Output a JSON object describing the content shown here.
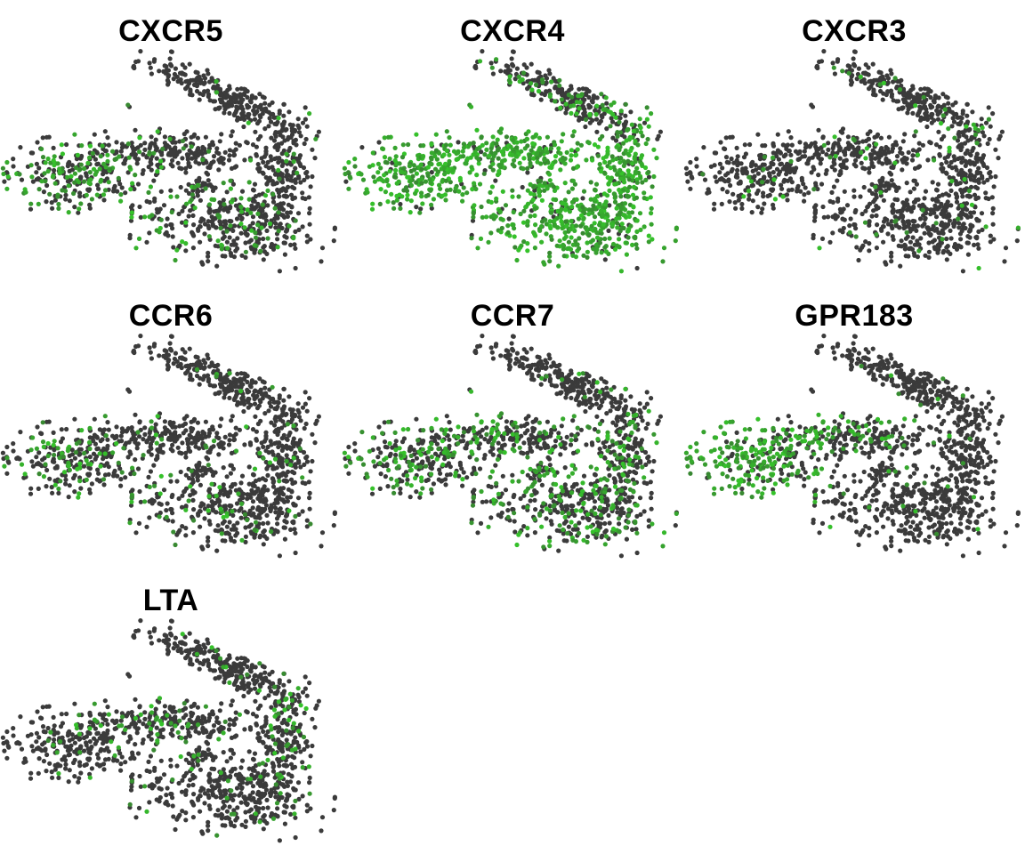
{
  "chart_data": {
    "type": "scatter",
    "description": "",
    "colors": {
      "low": "#3b3b3b",
      "high": "#35c42a"
    },
    "panels": [
      {
        "title": "CXCR5",
        "pattern": "left",
        "level": 0.55
      },
      {
        "title": "CXCR4",
        "pattern": "all-strong",
        "level": 0.9
      },
      {
        "title": "CXCR3",
        "pattern": "sparse",
        "level": 0.06
      },
      {
        "title": "CCR6",
        "pattern": "left-mild",
        "level": 0.3
      },
      {
        "title": "CCR7",
        "pattern": "broad",
        "level": 0.45
      },
      {
        "title": "GPR183",
        "pattern": "left-strong",
        "level": 0.75
      },
      {
        "title": "LTA",
        "pattern": "middle-sparse",
        "level": 0.15
      }
    ]
  }
}
